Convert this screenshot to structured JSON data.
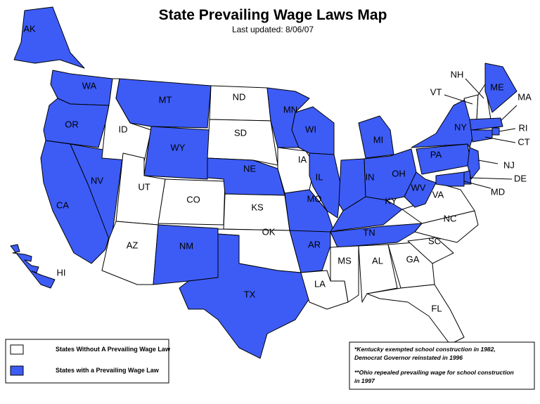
{
  "header": {
    "title": "State Prevailing Wage Laws Map",
    "subtitle": "Last updated: 8/06/07"
  },
  "states": [
    {
      "label": "AK",
      "law": true
    },
    {
      "label": "WA",
      "law": true
    },
    {
      "label": "OR",
      "law": true
    },
    {
      "label": "CA",
      "law": true
    },
    {
      "label": "NV",
      "law": true
    },
    {
      "label": "ID",
      "law": false
    },
    {
      "label": "MT",
      "law": true
    },
    {
      "label": "WY",
      "law": true
    },
    {
      "label": "UT",
      "law": false
    },
    {
      "label": "AZ",
      "law": false
    },
    {
      "label": "CO",
      "law": false
    },
    {
      "label": "NM",
      "law": true
    },
    {
      "label": "ND",
      "law": false
    },
    {
      "label": "SD",
      "law": false
    },
    {
      "label": "NE",
      "law": true
    },
    {
      "label": "KS",
      "law": false
    },
    {
      "label": "OK",
      "law": false
    },
    {
      "label": "TX",
      "law": true
    },
    {
      "label": "MN",
      "law": true
    },
    {
      "label": "IA",
      "law": false
    },
    {
      "label": "MO",
      "law": true
    },
    {
      "label": "AR",
      "law": true
    },
    {
      "label": "LA",
      "law": false
    },
    {
      "label": "WI",
      "law": true
    },
    {
      "label": "IL",
      "law": true
    },
    {
      "label": "MI",
      "law": true
    },
    {
      "label": "IN",
      "law": true
    },
    {
      "label": "OH",
      "law": true
    },
    {
      "label": "KY",
      "law": true
    },
    {
      "label": "TN",
      "law": true
    },
    {
      "label": "MS",
      "law": false
    },
    {
      "label": "AL",
      "law": false
    },
    {
      "label": "GA",
      "law": false
    },
    {
      "label": "FL",
      "law": false
    },
    {
      "label": "SC",
      "law": false
    },
    {
      "label": "NC",
      "law": false
    },
    {
      "label": "VA",
      "law": false
    },
    {
      "label": "WV",
      "law": true
    },
    {
      "label": "PA",
      "law": true
    },
    {
      "label": "NY",
      "law": true
    },
    {
      "label": "VT",
      "law": false
    },
    {
      "label": "NH",
      "law": false
    },
    {
      "label": "ME",
      "law": true
    },
    {
      "label": "MA",
      "law": true
    },
    {
      "label": "RI",
      "law": true
    },
    {
      "label": "CT",
      "law": true
    },
    {
      "label": "NJ",
      "law": true
    },
    {
      "label": "DE",
      "law": true
    },
    {
      "label": "MD",
      "law": true
    },
    {
      "label": "HI",
      "law": true
    }
  ],
  "legend": [
    {
      "label": "States Without A Prevailing Wage Law",
      "color": "#ffffff",
      "law": false
    },
    {
      "label": "States with a Prevailing Wage Law",
      "color": "#3d5cf6",
      "law": true
    }
  ],
  "notes": [
    "*Kentucky exempted school construction in 1982,",
    "Democrat Governor reinstated in 1996",
    "**Ohio repealed prevailing wage for school construction",
    "in 1997"
  ]
}
